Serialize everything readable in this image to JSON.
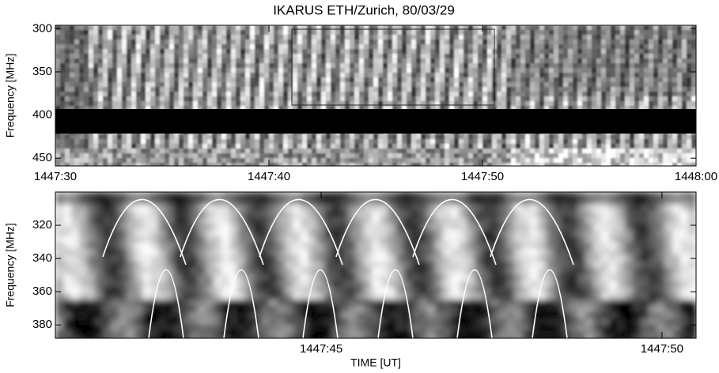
{
  "chart_data": [
    {
      "type": "spectrogram",
      "title": "IKARUS ETH/Zurich, 80/03/29",
      "y_label": "Frequency [MHz]",
      "xlim": [
        "1447:30",
        "1448:00"
      ],
      "xticks": [
        "1447:30",
        "1447:40",
        "1447:50",
        "1448:00"
      ],
      "ylim": [
        296,
        459
      ],
      "yticks": [
        300,
        350,
        400,
        450
      ],
      "y_inverted": true,
      "colormap": "gray"
    },
    {
      "type": "spectrogram",
      "y_label": "Frequency [MHz]",
      "x_label": "TIME [UT]",
      "xlim": [
        "1447:41.1",
        "1447:50.5"
      ],
      "xticks": [
        "1447:45",
        "1447:50"
      ],
      "ylim": [
        300,
        388
      ],
      "yticks": [
        320,
        340,
        360,
        380
      ],
      "y_inverted": true,
      "colormap": "gray"
    }
  ]
}
